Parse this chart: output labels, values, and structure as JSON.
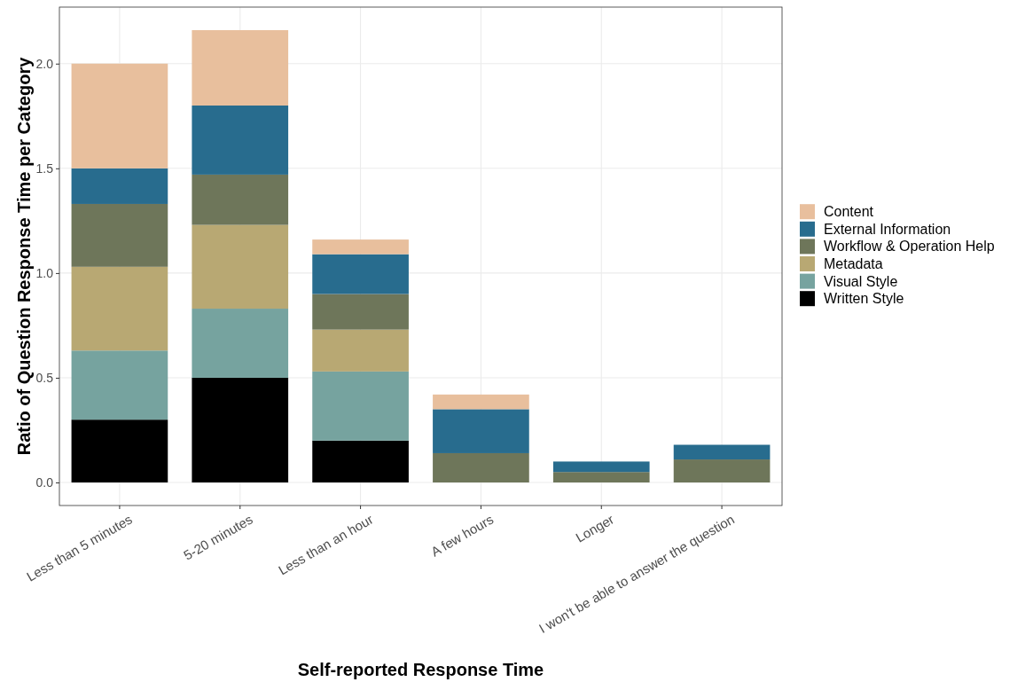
{
  "chart_data": {
    "type": "bar",
    "stacked": true,
    "xlabel": "Self-reported Response Time",
    "ylabel": "Ratio of Question Response Time per Category",
    "categories": [
      "Less than 5 minutes",
      "5-20 minutes",
      "Less than an hour",
      "A few hours",
      "Longer",
      "I won't be able to answer the question"
    ],
    "series": [
      {
        "name": "Written Style",
        "color": "#000000",
        "values": [
          0.3,
          0.5,
          0.2,
          0,
          0,
          0
        ]
      },
      {
        "name": "Visual Style",
        "color": "#76a39f",
        "values": [
          0.33,
          0.33,
          0.33,
          0,
          0,
          0
        ]
      },
      {
        "name": "Metadata",
        "color": "#b8a873",
        "values": [
          0.4,
          0.4,
          0.2,
          0,
          0,
          0
        ]
      },
      {
        "name": "Workflow & Operation Help",
        "color": "#6e765a",
        "values": [
          0.3,
          0.24,
          0.17,
          0.14,
          0.05,
          0.11
        ]
      },
      {
        "name": "External Information",
        "color": "#286c8e",
        "values": [
          0.17,
          0.33,
          0.19,
          0.21,
          0.05,
          0.07
        ]
      },
      {
        "name": "Content",
        "color": "#e8bf9d",
        "values": [
          0.5,
          0.36,
          0.07,
          0.07,
          0,
          0
        ]
      }
    ],
    "ylim": [
      -0.11,
      2.27
    ],
    "yticks": [
      {
        "value": 0,
        "label": "0.0"
      },
      {
        "value": 0.5,
        "label": "0.5"
      },
      {
        "value": 1,
        "label": "1.0"
      },
      {
        "value": 1.5,
        "label": "1.5"
      },
      {
        "value": 2,
        "label": "2.0"
      }
    ],
    "grid": true,
    "legend": "right"
  }
}
